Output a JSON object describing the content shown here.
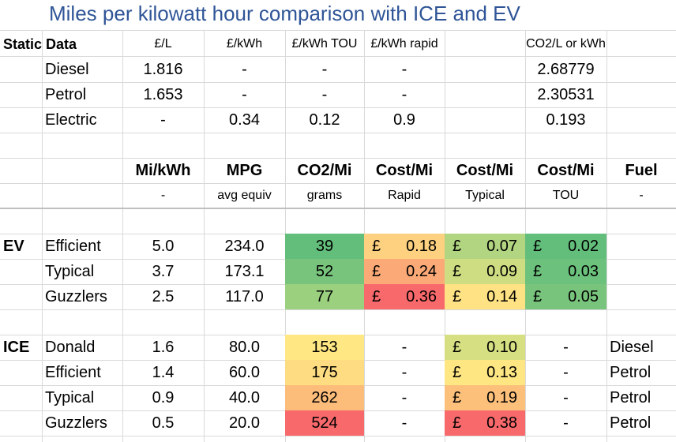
{
  "title": "Miles per kilowatt hour comparison with ICE and EV",
  "static": {
    "label": "Static Data",
    "headers": [
      "£/L",
      "£/kWh",
      "£/kWh TOU",
      "£/kWh rapid",
      "CO2/L or kWh"
    ],
    "rows": [
      {
        "name": "Diesel",
        "values": [
          "1.816",
          "-",
          "-",
          "-",
          "2.68779"
        ]
      },
      {
        "name": "Petrol",
        "values": [
          "1.653",
          "-",
          "-",
          "-",
          "2.30531"
        ]
      },
      {
        "name": "Electric",
        "values": [
          "-",
          "0.34",
          "0.12",
          "0.9",
          "0.193"
        ]
      }
    ]
  },
  "compare": {
    "headers": [
      "Mi/kWh",
      "MPG",
      "CO2/Mi",
      "Cost/Mi",
      "Cost/Mi",
      "Cost/Mi",
      "Fuel"
    ],
    "subheaders": [
      "-",
      "avg equiv",
      "grams",
      "Rapid",
      "Typical",
      "TOU",
      "-"
    ]
  },
  "ev": {
    "label": "EV",
    "currency": "£",
    "rows": [
      {
        "name": "Efficient",
        "mikwh": "5.0",
        "mpg": "234.0",
        "co2": "39",
        "rapid": "0.18",
        "typical": "0.07",
        "tou": "0.02",
        "colors": {
          "co2": "#63be7b",
          "rapid": "#fdd17f",
          "typical": "#b1d580",
          "tou": "#63be7b"
        }
      },
      {
        "name": "Typical",
        "mikwh": "3.7",
        "mpg": "173.1",
        "co2": "52",
        "rapid": "0.24",
        "typical": "0.09",
        "tou": "0.03",
        "colors": {
          "co2": "#78c47d",
          "rapid": "#fbaa77",
          "typical": "#cfdd82",
          "tou": "#6cc17c"
        }
      },
      {
        "name": "Guzzlers",
        "mikwh": "2.5",
        "mpg": "117.0",
        "co2": "77",
        "rapid": "0.36",
        "typical": "0.14",
        "tou": "0.05",
        "colors": {
          "co2": "#9bd07f",
          "rapid": "#f8696b",
          "typical": "#ffe283",
          "tou": "#79c47d"
        }
      }
    ]
  },
  "ice": {
    "label": "ICE",
    "currency": "£",
    "rows": [
      {
        "name": "Donald",
        "mikwh": "1.6",
        "mpg": "80.0",
        "co2": "153",
        "rapid": "-",
        "typical": "0.10",
        "tou": "-",
        "fuel": "Diesel",
        "colors": {
          "co2": "#ffe884",
          "typical": "#d6df82"
        }
      },
      {
        "name": "Efficient",
        "mikwh": "1.4",
        "mpg": "60.0",
        "co2": "175",
        "rapid": "-",
        "typical": "0.13",
        "tou": "-",
        "fuel": "Petrol",
        "colors": {
          "co2": "#fedc81",
          "typical": "#fee683"
        }
      },
      {
        "name": "Typical",
        "mikwh": "0.9",
        "mpg": "40.0",
        "co2": "262",
        "rapid": "-",
        "typical": "0.19",
        "tou": "-",
        "fuel": "Petrol",
        "colors": {
          "co2": "#fcbd7b",
          "typical": "#fcc07b"
        }
      },
      {
        "name": "Guzzlers",
        "mikwh": "0.5",
        "mpg": "20.0",
        "co2": "524",
        "rapid": "-",
        "typical": "0.38",
        "tou": "-",
        "fuel": "Petrol",
        "colors": {
          "co2": "#f8696b",
          "typical": "#f8696b"
        }
      }
    ]
  }
}
